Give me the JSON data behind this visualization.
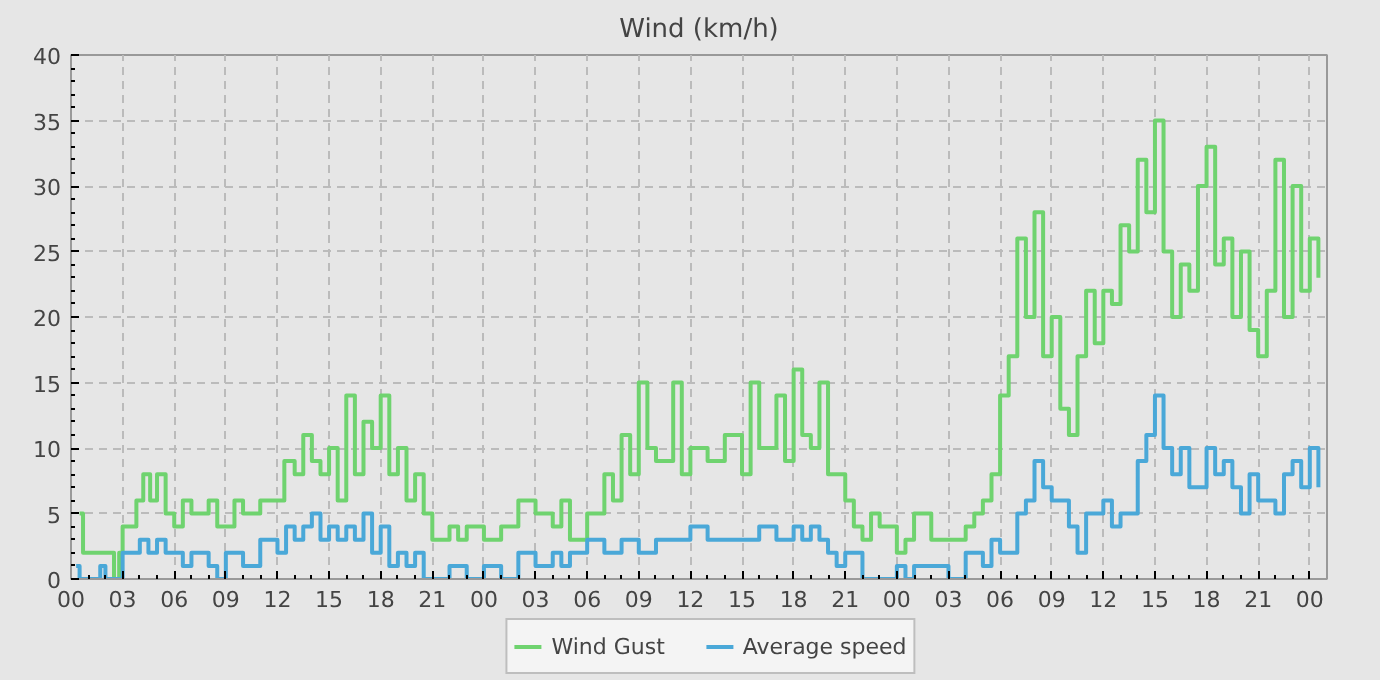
{
  "chart_data": {
    "type": "step",
    "title": "Wind (km/h)",
    "xlim": [
      0,
      73
    ],
    "ylim": [
      0,
      40
    ],
    "xticks": [
      {
        "value": 0,
        "label": "00"
      },
      {
        "value": 3,
        "label": "03"
      },
      {
        "value": 6,
        "label": "06"
      },
      {
        "value": 9,
        "label": "09"
      },
      {
        "value": 12,
        "label": "12"
      },
      {
        "value": 15,
        "label": "15"
      },
      {
        "value": 18,
        "label": "18"
      },
      {
        "value": 21,
        "label": "21"
      },
      {
        "value": 24,
        "label": "00"
      },
      {
        "value": 27,
        "label": "03"
      },
      {
        "value": 30,
        "label": "06"
      },
      {
        "value": 33,
        "label": "09"
      },
      {
        "value": 36,
        "label": "12"
      },
      {
        "value": 39,
        "label": "15"
      },
      {
        "value": 42,
        "label": "18"
      },
      {
        "value": 45,
        "label": "21"
      },
      {
        "value": 48,
        "label": "00"
      },
      {
        "value": 51,
        "label": "03"
      },
      {
        "value": 54,
        "label": "06"
      },
      {
        "value": 57,
        "label": "09"
      },
      {
        "value": 60,
        "label": "12"
      },
      {
        "value": 63,
        "label": "15"
      },
      {
        "value": 66,
        "label": "18"
      },
      {
        "value": 69,
        "label": "21"
      },
      {
        "value": 72,
        "label": "00"
      }
    ],
    "yticks": [
      0,
      5,
      10,
      15,
      20,
      25,
      30,
      35,
      40
    ],
    "grid": true,
    "legend": "bottom",
    "series": [
      {
        "name": "Wind Gust",
        "color": "#6fd36f",
        "x": [
          0.5,
          0.7,
          1.5,
          2.5,
          2.8,
          3,
          3.5,
          3.8,
          4.2,
          4.6,
          5,
          5.5,
          6,
          6.5,
          7,
          8,
          8.5,
          9.5,
          10,
          11,
          12,
          12.4,
          13,
          13.5,
          14,
          14.5,
          15,
          15.5,
          16,
          16.5,
          17,
          17.5,
          18,
          18.5,
          19,
          19.5,
          20,
          20.5,
          21,
          22,
          22.5,
          23,
          24,
          25,
          26,
          27,
          28,
          28.5,
          29,
          30,
          31,
          31.5,
          32,
          32.5,
          33,
          33.5,
          34,
          35,
          35.5,
          36,
          37,
          38,
          39,
          39.5,
          40,
          41,
          41.5,
          42,
          42.5,
          43,
          43.5,
          44,
          45,
          45.5,
          46,
          46.5,
          47,
          48,
          48.5,
          49,
          50,
          51,
          52,
          52.5,
          53,
          53.5,
          54,
          54.5,
          55,
          55.5,
          56,
          56.5,
          57,
          57.5,
          58,
          58.5,
          59,
          59.5,
          60,
          60.5,
          61,
          61.5,
          62,
          62.5,
          63,
          63.5,
          64,
          64.5,
          65,
          65.5,
          66,
          66.5,
          67,
          67.5,
          68,
          68.5,
          69,
          69.5,
          70,
          70.5,
          71,
          71.5,
          72,
          72.5
        ],
        "values": [
          5,
          2,
          2,
          0,
          2,
          4,
          4,
          6,
          8,
          6,
          8,
          5,
          4,
          6,
          5,
          6,
          4,
          6,
          5,
          6,
          6,
          9,
          8,
          11,
          9,
          8,
          10,
          6,
          14,
          8,
          12,
          10,
          14,
          8,
          10,
          6,
          8,
          5,
          3,
          4,
          3,
          4,
          3,
          4,
          6,
          5,
          4,
          6,
          3,
          5,
          8,
          6,
          11,
          8,
          15,
          10,
          9,
          15,
          8,
          10,
          9,
          11,
          8,
          15,
          10,
          14,
          9,
          16,
          11,
          10,
          15,
          8,
          6,
          4,
          3,
          5,
          4,
          2,
          3,
          5,
          3,
          3,
          4,
          5,
          6,
          8,
          14,
          17,
          26,
          20,
          28,
          17,
          20,
          13,
          11,
          17,
          22,
          18,
          22,
          21,
          27,
          25,
          32,
          28,
          35,
          25,
          20,
          24,
          22,
          30,
          33,
          24,
          26,
          20,
          25,
          19,
          17,
          22,
          32,
          20,
          30,
          22,
          26,
          23
        ]
      },
      {
        "name": "Average speed",
        "color": "#4aa8d8",
        "x": [
          0.3,
          0.5,
          1,
          1.7,
          2,
          3,
          3.5,
          4,
          4.5,
          5,
          5.5,
          6,
          6.5,
          7,
          8,
          8.5,
          9,
          10,
          11,
          12,
          12.5,
          13,
          13.5,
          14,
          14.5,
          15,
          15.5,
          16,
          16.5,
          17,
          17.5,
          18,
          18.5,
          19,
          19.5,
          20,
          20.5,
          21,
          22,
          23,
          24,
          25,
          26,
          27,
          28,
          28.5,
          29,
          30,
          31,
          32,
          33,
          34,
          35,
          36,
          37,
          38,
          39,
          40,
          41,
          42,
          42.5,
          43,
          43.5,
          44,
          44.5,
          45,
          46,
          47,
          48,
          48.5,
          49,
          50,
          51,
          52,
          53,
          53.5,
          54,
          55,
          55.5,
          56,
          56.5,
          57,
          58,
          58.5,
          59,
          60,
          60.5,
          61,
          62,
          62.5,
          63,
          63.5,
          64,
          64.5,
          65,
          66,
          66.5,
          67,
          67.5,
          68,
          68.5,
          69,
          70,
          70.5,
          71,
          71.5,
          72,
          72.5
        ],
        "values": [
          1,
          0,
          0,
          1,
          0,
          2,
          2,
          3,
          2,
          3,
          2,
          2,
          1,
          2,
          1,
          0,
          2,
          1,
          3,
          2,
          4,
          3,
          4,
          5,
          3,
          4,
          3,
          4,
          3,
          5,
          2,
          4,
          1,
          2,
          1,
          2,
          0,
          0,
          1,
          0,
          1,
          0,
          2,
          1,
          2,
          1,
          2,
          3,
          2,
          3,
          2,
          3,
          3,
          4,
          3,
          3,
          3,
          4,
          3,
          4,
          3,
          4,
          3,
          2,
          1,
          2,
          0,
          0,
          1,
          0,
          1,
          1,
          0,
          2,
          1,
          3,
          2,
          5,
          6,
          9,
          7,
          6,
          4,
          2,
          5,
          6,
          4,
          5,
          9,
          11,
          14,
          10,
          8,
          10,
          7,
          10,
          8,
          9,
          7,
          5,
          8,
          6,
          5,
          8,
          9,
          7,
          10,
          7
        ]
      }
    ]
  }
}
